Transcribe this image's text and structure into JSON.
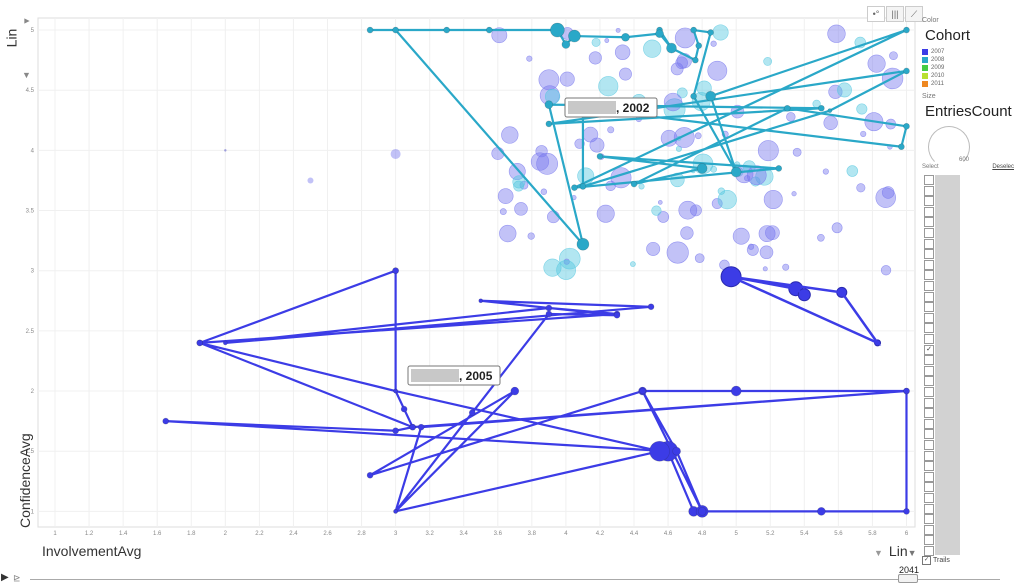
{
  "chart_data": {
    "type": "scatter",
    "xlabel": "InvolvementAvg",
    "ylabel": "ConfidenceAvg",
    "xlim": [
      0.9,
      6.05
    ],
    "ylim": [
      0.87,
      5.1
    ],
    "xticks": [
      "1",
      "1.2",
      "1.4",
      "1.6",
      "1.8",
      "2",
      "2.2",
      "2.4",
      "2.6",
      "2.8",
      "3",
      "3.2",
      "3.4",
      "3.6",
      "3.8",
      "4",
      "4.2",
      "4.4",
      "4.6",
      "4.8",
      "5",
      "5.2",
      "5.4",
      "5.6",
      "5.8",
      "6"
    ],
    "yticks": [
      "1",
      "1.5",
      "2",
      "2.5",
      "3",
      "3.5",
      "4",
      "4.5",
      "5"
    ],
    "x_scale": "Lin",
    "y_scale": "Lin",
    "grid": true,
    "colors": {
      "2007": "#3c3ce6",
      "2008": "#2aa8c8",
      "2009": "#44cc44",
      "2010": "#b8e030",
      "2011": "#ee8822"
    },
    "trails": [
      {
        "label": "2005",
        "color": "#3c3ce6",
        "points": [
          [
            3,
            3
          ],
          [
            3,
            2
          ],
          [
            3.05,
            1.85
          ],
          [
            3.1,
            1.7
          ],
          [
            3,
            1.67
          ],
          [
            1.65,
            1.75
          ],
          [
            4.6,
            1.5
          ],
          [
            4.75,
            1.0
          ],
          [
            5.5,
            1.0
          ],
          [
            4.8,
            1.0
          ],
          [
            4.65,
            1.5
          ],
          [
            4.45,
            2.0
          ],
          [
            5.0,
            2.0
          ],
          [
            6.0,
            2.0
          ],
          [
            6.0,
            1.0
          ],
          [
            4.8,
            1.0
          ],
          [
            4.45,
            2.0
          ],
          [
            2.85,
            1.3
          ],
          [
            3.7,
            2.0
          ],
          [
            3,
            1.0
          ],
          [
            3.15,
            1.7
          ],
          [
            6.0,
            2.0
          ],
          [
            3.1,
            1.7
          ],
          [
            1.85,
            2.4
          ],
          [
            4.3,
            2.64
          ],
          [
            3.9,
            2.69
          ],
          [
            2,
            2.4
          ],
          [
            4.5,
            2.7
          ],
          [
            3.5,
            2.75
          ],
          [
            4.3,
            2.63
          ],
          [
            3.9,
            2.64
          ],
          [
            3.45,
            1.82
          ],
          [
            3,
            1.0
          ],
          [
            4.55,
            1.5
          ],
          [
            3,
            2.0
          ],
          [
            1.85,
            2.4
          ],
          [
            3,
            3
          ]
        ],
        "sizes": [
          3,
          2,
          3,
          3,
          3,
          3,
          10,
          5,
          4,
          6,
          4,
          4,
          5,
          3,
          3,
          4,
          3,
          3,
          4,
          2,
          3,
          3,
          3,
          3,
          3,
          3,
          2,
          3,
          2,
          3,
          3,
          3,
          2,
          10,
          2,
          3,
          3
        ]
      },
      {
        "label": "2002",
        "color": "#2aa8c8",
        "points": [
          [
            3,
            5
          ],
          [
            4.1,
            3.22
          ],
          [
            3.9,
            4.38
          ],
          [
            5.5,
            4.35
          ],
          [
            3.9,
            4.22
          ],
          [
            6.0,
            4.66
          ],
          [
            5.55,
            4.33
          ],
          [
            4.1,
            3.7
          ],
          [
            4.1,
            4.35
          ],
          [
            5.97,
            4.03
          ],
          [
            6.0,
            4.2
          ],
          [
            5.3,
            4.35
          ],
          [
            4.4,
            3.72
          ],
          [
            4.8,
            3.85
          ],
          [
            4.2,
            3.95
          ],
          [
            5.25,
            3.85
          ],
          [
            4.05,
            3.69
          ],
          [
            6.0,
            5.0
          ],
          [
            4.85,
            4.45
          ],
          [
            5.0,
            3.82
          ],
          [
            4.75,
            4.45
          ],
          [
            4.85,
            4.98
          ],
          [
            4.75,
            5
          ],
          [
            4.78,
            4.87
          ],
          [
            4.76,
            4.75
          ],
          [
            4.62,
            4.85
          ],
          [
            4.55,
            5.0
          ],
          [
            4.62,
            4.85
          ],
          [
            4.55,
            4.97
          ],
          [
            4.35,
            4.94
          ],
          [
            4.05,
            4.95
          ],
          [
            4.0,
            4.88
          ],
          [
            3.95,
            5.0
          ],
          [
            3.55,
            5.0
          ],
          [
            3.3,
            5.0
          ],
          [
            2.85,
            5.0
          ],
          [
            3.0,
            5.0
          ]
        ],
        "sizes": [
          2,
          6,
          4,
          3,
          3,
          3,
          2,
          3,
          3,
          3,
          3,
          3,
          3,
          5,
          3,
          3,
          3,
          3,
          5,
          5,
          3,
          3,
          3,
          3,
          3,
          3,
          3,
          5,
          4,
          4,
          6,
          4,
          7,
          3,
          3,
          3,
          3
        ]
      }
    ],
    "bubbles_note": "background bubbles for other entities"
  },
  "labels": {
    "ylabel": "ConfidenceAvg",
    "xlabel": "InvolvementAvg",
    "yscale": "Lin",
    "xscale": "Lin",
    "trail_label_1": ", 2002",
    "trail_label_2": ", 2005"
  },
  "sidebar": {
    "color_caption": "Color",
    "color_value": "Cohort",
    "legend": [
      {
        "label": "2007",
        "color": "#3c3ce6"
      },
      {
        "label": "2008",
        "color": "#2aa8c8"
      },
      {
        "label": "2009",
        "color": "#44cc44"
      },
      {
        "label": "2010",
        "color": "#b8e030"
      },
      {
        "label": "2011",
        "color": "#ee8822"
      }
    ],
    "size_caption": "Size",
    "size_value": "EntriesCount",
    "size_max": "600",
    "select_caption": "Select",
    "deselect": "Deselec",
    "trails_label": "Trails"
  },
  "timeline": {
    "year": "2041"
  }
}
